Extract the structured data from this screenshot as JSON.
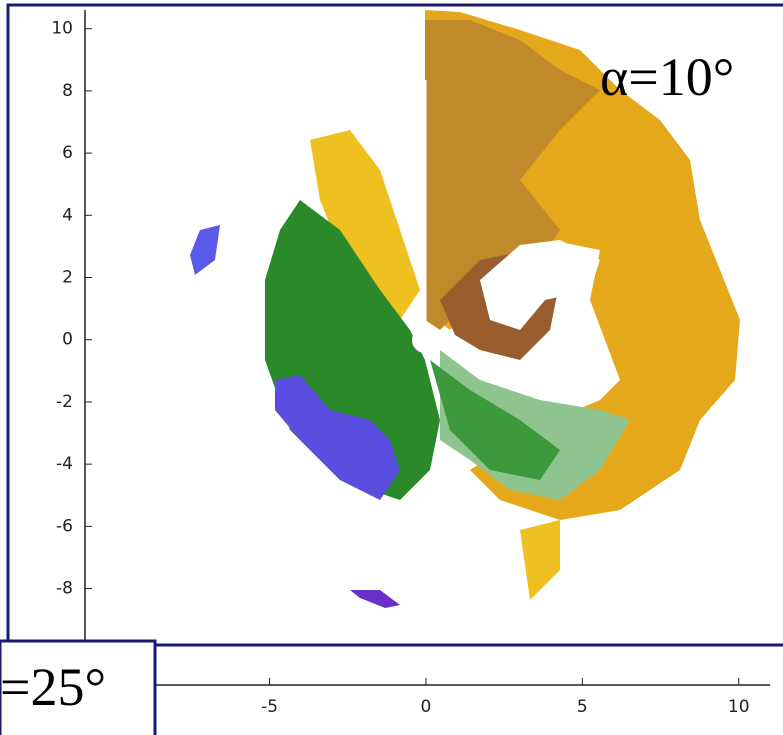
{
  "chart_data": {
    "type": "image",
    "xlim": [
      -10.9,
      11
    ],
    "ylim": [
      -11.1,
      10.6
    ],
    "xticks": [
      -5,
      0,
      5,
      10
    ],
    "yticks": [
      -8,
      -6,
      -4,
      -2,
      0,
      2,
      4,
      6,
      8,
      10
    ],
    "annotations": [
      "α=10°",
      "=25°"
    ]
  }
}
